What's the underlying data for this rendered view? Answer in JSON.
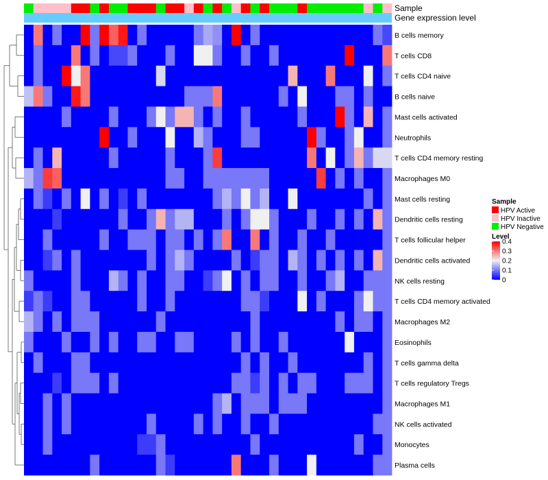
{
  "chart_data": {
    "type": "heatmap",
    "annotation_labels": [
      "Sample",
      "Gene expression level"
    ],
    "sample_groups": [
      "N",
      "I",
      "I",
      "I",
      "I",
      "A",
      "A",
      "N",
      "A",
      "N",
      "N",
      "A",
      "A",
      "A",
      "N",
      "A",
      "A",
      "I",
      "A",
      "N",
      "A",
      "N",
      "I",
      "A",
      "N",
      "A",
      "N",
      "N",
      "N",
      "A",
      "N",
      "N",
      "N",
      "N",
      "N",
      "N",
      "I",
      "N",
      "I"
    ],
    "rows": [
      "B cells memory",
      "T cells CD8",
      "T cells CD4 naive",
      "B cells naive",
      "Mast cells activated",
      "Neutrophils",
      "T cells CD4 memory resting",
      "Macrophages M0",
      "Mast cells resting",
      "Dendritic cells resting",
      "T cells follicular helper",
      "Dendritic cells activated",
      "NK cells resting",
      "T cells CD4 memory activated",
      "Macrophages M2",
      "Eosinophils",
      "T cells gamma delta",
      "T cells regulatory  Tregs",
      "Macrophages M1",
      "NK cells activated",
      "Monocytes",
      "Plasma cells"
    ],
    "values": [
      [
        0.0,
        0.3,
        0.0,
        0.1,
        0.0,
        0.0,
        0.4,
        0.1,
        0.4,
        0.32,
        0.38,
        0.0,
        0.1,
        0.0,
        0.0,
        0.0,
        0.0,
        0.0,
        0.1,
        0.14,
        0.12,
        0.0,
        0.4,
        0.0,
        0.1,
        0.0,
        0.0,
        0.0,
        0.0,
        0.0,
        0.0,
        0.0,
        0.0,
        0.0,
        0.0,
        0.0,
        0.0,
        0.1,
        0.06
      ],
      [
        0.0,
        0.1,
        0.0,
        0.0,
        0.0,
        0.3,
        0.0,
        0.1,
        0.0,
        0.06,
        0.06,
        0.1,
        0.0,
        0.0,
        0.0,
        0.1,
        0.0,
        0.0,
        0.2,
        0.2,
        0.1,
        0.0,
        0.0,
        0.1,
        0.0,
        0.0,
        0.1,
        0.0,
        0.0,
        0.0,
        0.0,
        0.0,
        0.0,
        0.0,
        0.4,
        0.0,
        0.0,
        0.0,
        0.3
      ],
      [
        0.0,
        0.1,
        0.0,
        0.0,
        0.4,
        0.2,
        0.3,
        0.0,
        0.0,
        0.0,
        0.0,
        0.0,
        0.0,
        0.0,
        0.18,
        0.0,
        0.0,
        0.0,
        0.0,
        0.0,
        0.0,
        0.0,
        0.0,
        0.0,
        0.0,
        0.0,
        0.0,
        0.0,
        0.25,
        0.0,
        0.0,
        0.0,
        0.3,
        0.0,
        0.0,
        0.0,
        0.2,
        0.0,
        0.1
      ],
      [
        0.16,
        0.3,
        0.1,
        0.0,
        0.0,
        0.38,
        0.3,
        0.0,
        0.0,
        0.0,
        0.0,
        0.0,
        0.0,
        0.0,
        0.0,
        0.0,
        0.0,
        0.1,
        0.1,
        0.1,
        0.3,
        0.0,
        0.0,
        0.0,
        0.0,
        0.0,
        0.0,
        0.1,
        0.0,
        0.2,
        0.0,
        0.0,
        0.0,
        0.1,
        0.1,
        0.0,
        0.1,
        0.0,
        0.0
      ],
      [
        0.0,
        0.0,
        0.0,
        0.0,
        0.1,
        0.0,
        0.0,
        0.0,
        0.0,
        0.1,
        0.0,
        0.0,
        0.0,
        0.1,
        0.2,
        0.1,
        0.25,
        0.25,
        0.1,
        0.0,
        0.1,
        0.0,
        0.0,
        0.1,
        0.0,
        0.0,
        0.0,
        0.0,
        0.0,
        0.1,
        0.0,
        0.0,
        0.0,
        0.4,
        0.1,
        0.0,
        0.25,
        0.0,
        0.1
      ],
      [
        0.0,
        0.0,
        0.0,
        0.0,
        0.0,
        0.0,
        0.0,
        0.0,
        0.4,
        0.0,
        0.0,
        0.1,
        0.0,
        0.0,
        0.0,
        0.2,
        0.0,
        0.0,
        0.15,
        0.1,
        0.0,
        0.0,
        0.0,
        0.1,
        0.1,
        0.0,
        0.0,
        0.0,
        0.0,
        0.0,
        0.4,
        0.1,
        0.0,
        0.0,
        0.1,
        0.2,
        0.0,
        0.0,
        0.1
      ],
      [
        0.0,
        0.1,
        0.0,
        0.25,
        0.0,
        0.0,
        0.0,
        0.0,
        0.0,
        0.1,
        0.0,
        0.0,
        0.0,
        0.0,
        0.0,
        0.1,
        0.0,
        0.0,
        0.0,
        0.1,
        0.35,
        0.0,
        0.0,
        0.0,
        0.0,
        0.0,
        0.0,
        0.0,
        0.0,
        0.0,
        0.3,
        0.0,
        0.2,
        0.0,
        0.1,
        0.25,
        0.1,
        0.18,
        0.18
      ],
      [
        0.15,
        0.1,
        0.35,
        0.32,
        0.0,
        0.0,
        0.0,
        0.0,
        0.0,
        0.0,
        0.0,
        0.0,
        0.0,
        0.0,
        0.0,
        0.1,
        0.1,
        0.0,
        0.0,
        0.1,
        0.1,
        0.1,
        0.1,
        0.1,
        0.1,
        0.1,
        0.0,
        0.0,
        0.0,
        0.0,
        0.0,
        0.35,
        0.0,
        0.1,
        0.0,
        0.1,
        0.0,
        0.0,
        0.1
      ],
      [
        0.0,
        0.1,
        0.05,
        0.0,
        0.1,
        0.0,
        0.2,
        0.0,
        0.1,
        0.0,
        0.05,
        0.0,
        0.1,
        0.0,
        0.0,
        0.0,
        0.0,
        0.0,
        0.0,
        0.0,
        0.1,
        0.15,
        0.1,
        0.2,
        0.1,
        0.15,
        0.0,
        0.0,
        0.2,
        0.0,
        0.0,
        0.0,
        0.0,
        0.0,
        0.0,
        0.0,
        0.1,
        0.0,
        0.1
      ],
      [
        0.0,
        0.0,
        0.0,
        0.05,
        0.0,
        0.0,
        0.0,
        0.0,
        0.0,
        0.0,
        0.1,
        0.0,
        0.0,
        0.1,
        0.25,
        0.1,
        0.15,
        0.15,
        0.0,
        0.0,
        0.0,
        0.1,
        0.0,
        0.1,
        0.2,
        0.2,
        0.1,
        0.0,
        0.0,
        0.0,
        0.1,
        0.0,
        0.0,
        0.1,
        0.0,
        0.1,
        0.0,
        0.25,
        0.1
      ],
      [
        0.0,
        0.0,
        0.1,
        0.0,
        0.0,
        0.0,
        0.0,
        0.0,
        0.1,
        0.0,
        0.0,
        0.1,
        0.1,
        0.1,
        0.0,
        0.1,
        0.1,
        0.0,
        0.1,
        0.0,
        0.1,
        0.3,
        0.0,
        0.0,
        0.3,
        0.0,
        0.1,
        0.0,
        0.0,
        0.1,
        0.0,
        0.0,
        0.1,
        0.0,
        0.0,
        0.0,
        0.0,
        0.0,
        0.1
      ],
      [
        0.0,
        0.0,
        0.05,
        0.1,
        0.0,
        0.1,
        0.0,
        0.0,
        0.0,
        0.0,
        0.0,
        0.0,
        0.0,
        0.1,
        0.0,
        0.1,
        0.15,
        0.1,
        0.0,
        0.0,
        0.0,
        0.0,
        0.1,
        0.0,
        0.05,
        0.1,
        0.1,
        0.0,
        0.15,
        0.1,
        0.0,
        0.1,
        0.0,
        0.1,
        0.0,
        0.1,
        0.0,
        0.25,
        0.1
      ],
      [
        0.1,
        0.0,
        0.0,
        0.0,
        0.0,
        0.1,
        0.0,
        0.0,
        0.0,
        0.15,
        0.1,
        0.0,
        0.1,
        0.0,
        0.0,
        0.1,
        0.1,
        0.0,
        0.0,
        0.05,
        0.1,
        0.2,
        0.0,
        0.1,
        0.0,
        0.1,
        0.1,
        0.0,
        0.0,
        0.1,
        0.0,
        0.0,
        0.1,
        0.15,
        0.0,
        0.0,
        0.1,
        0.1,
        0.1
      ],
      [
        0.05,
        0.1,
        0.05,
        0.0,
        0.0,
        0.1,
        0.1,
        0.0,
        0.0,
        0.0,
        0.0,
        0.0,
        0.1,
        0.0,
        0.0,
        0.1,
        0.0,
        0.0,
        0.0,
        0.0,
        0.0,
        0.0,
        0.0,
        0.1,
        0.1,
        0.05,
        0.0,
        0.0,
        0.0,
        0.2,
        0.0,
        0.1,
        0.0,
        0.0,
        0.0,
        0.1,
        0.2,
        0.1,
        0.1
      ],
      [
        0.15,
        0.1,
        0.0,
        0.1,
        0.0,
        0.1,
        0.1,
        0.1,
        0.0,
        0.0,
        0.0,
        0.0,
        0.0,
        0.0,
        0.1,
        0.0,
        0.0,
        0.0,
        0.0,
        0.0,
        0.0,
        0.0,
        0.0,
        0.0,
        0.1,
        0.0,
        0.0,
        0.0,
        0.0,
        0.0,
        0.0,
        0.0,
        0.0,
        0.1,
        0.0,
        0.1,
        0.1,
        0.0,
        0.1
      ],
      [
        0.1,
        0.0,
        0.0,
        0.0,
        0.1,
        0.0,
        0.0,
        0.1,
        0.0,
        0.1,
        0.0,
        0.0,
        0.1,
        0.1,
        0.0,
        0.0,
        0.1,
        0.1,
        0.0,
        0.0,
        0.0,
        0.0,
        0.1,
        0.0,
        0.1,
        0.0,
        0.0,
        0.1,
        0.0,
        0.0,
        0.0,
        0.0,
        0.0,
        0.0,
        0.2,
        0.0,
        0.0,
        0.0,
        0.1
      ],
      [
        0.0,
        0.1,
        0.0,
        0.0,
        0.0,
        0.1,
        0.1,
        0.0,
        0.0,
        0.0,
        0.0,
        0.0,
        0.0,
        0.0,
        0.0,
        0.0,
        0.0,
        0.0,
        0.0,
        0.0,
        0.0,
        0.0,
        0.0,
        0.1,
        0.0,
        0.1,
        0.0,
        0.0,
        0.1,
        0.0,
        0.0,
        0.0,
        0.0,
        0.0,
        0.0,
        0.0,
        0.1,
        0.0,
        0.1
      ],
      [
        0.0,
        0.0,
        0.0,
        0.05,
        0.0,
        0.1,
        0.1,
        0.1,
        0.0,
        0.1,
        0.0,
        0.0,
        0.0,
        0.0,
        0.0,
        0.0,
        0.0,
        0.0,
        0.0,
        0.0,
        0.0,
        0.0,
        0.1,
        0.1,
        0.05,
        0.1,
        0.0,
        0.1,
        0.0,
        0.1,
        0.1,
        0.0,
        0.0,
        0.0,
        0.1,
        0.1,
        0.1,
        0.0,
        0.1
      ],
      [
        0.0,
        0.0,
        0.1,
        0.0,
        0.1,
        0.0,
        0.0,
        0.0,
        0.0,
        0.0,
        0.0,
        0.0,
        0.0,
        0.0,
        0.0,
        0.0,
        0.0,
        0.0,
        0.0,
        0.0,
        0.1,
        0.15,
        0.0,
        0.1,
        0.1,
        0.1,
        0.0,
        0.1,
        0.1,
        0.1,
        0.0,
        0.0,
        0.0,
        0.0,
        0.0,
        0.0,
        0.0,
        0.0,
        0.1
      ],
      [
        0.0,
        0.0,
        0.1,
        0.0,
        0.1,
        0.0,
        0.0,
        0.0,
        0.0,
        0.0,
        0.0,
        0.0,
        0.0,
        0.1,
        0.0,
        0.0,
        0.0,
        0.0,
        0.1,
        0.0,
        0.1,
        0.0,
        0.0,
        0.1,
        0.0,
        0.0,
        0.1,
        0.0,
        0.0,
        0.0,
        0.0,
        0.0,
        0.0,
        0.0,
        0.0,
        0.0,
        0.0,
        0.1,
        0.1
      ],
      [
        0.0,
        0.0,
        0.1,
        0.0,
        0.0,
        0.0,
        0.0,
        0.0,
        0.0,
        0.0,
        0.0,
        0.0,
        0.05,
        0.05,
        0.1,
        0.0,
        0.0,
        0.0,
        0.0,
        0.0,
        0.0,
        0.0,
        0.0,
        0.0,
        0.1,
        0.0,
        0.0,
        0.0,
        0.0,
        0.0,
        0.0,
        0.0,
        0.0,
        0.0,
        0.0,
        0.1,
        0.0,
        0.0,
        0.1
      ],
      [
        0.0,
        0.0,
        0.0,
        0.0,
        0.0,
        0.0,
        0.0,
        0.1,
        0.0,
        0.0,
        0.0,
        0.0,
        0.0,
        0.0,
        0.1,
        0.05,
        0.0,
        0.0,
        0.0,
        0.0,
        0.0,
        0.0,
        0.3,
        0.0,
        0.0,
        0.0,
        0.1,
        0.0,
        0.0,
        0.0,
        0.2,
        0.0,
        0.0,
        0.0,
        0.0,
        0.0,
        0.0,
        0.1,
        0.1
      ]
    ],
    "legend_sample": {
      "title": "Sample",
      "items": [
        {
          "key": "A",
          "label": "HPV Active",
          "color": "#ff0000"
        },
        {
          "key": "I",
          "label": "HPV Inactive",
          "color": "#ffc0cb"
        },
        {
          "key": "N",
          "label": "HPV Negative",
          "color": "#00ee00"
        }
      ]
    },
    "legend_level": {
      "title": "Level",
      "ticks": [
        "0.4",
        "0.3",
        "0.2",
        "0.1",
        "0"
      ],
      "min": 0,
      "max": 0.4,
      "colors": {
        "low": "#0000ff",
        "mid": "#f0f0f0",
        "high": "#ff0000"
      }
    },
    "gene_bar_color": "#66ccff"
  }
}
